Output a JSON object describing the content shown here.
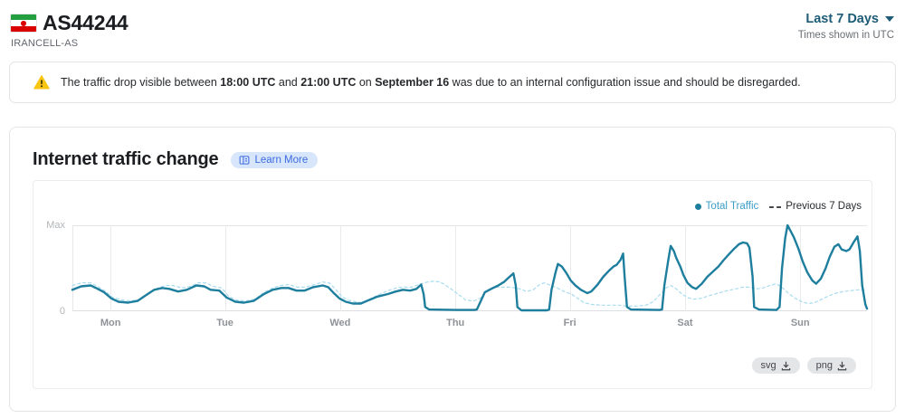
{
  "header": {
    "title": "AS44244",
    "subtitle": "IRANCELL-AS",
    "date_range": "Last 7 Days",
    "timezone_note": "Times shown in UTC",
    "flag": "iran-flag"
  },
  "banner": {
    "segments": [
      {
        "text": "The traffic drop visible between ",
        "bold": false
      },
      {
        "text": "18:00 UTC",
        "bold": true
      },
      {
        "text": " and ",
        "bold": false
      },
      {
        "text": "21:00 UTC",
        "bold": true
      },
      {
        "text": " on ",
        "bold": false
      },
      {
        "text": "September 16",
        "bold": true
      },
      {
        "text": " was due to an internal configuration issue and should be disregarded.",
        "bold": false
      }
    ]
  },
  "card": {
    "title": "Internet traffic change",
    "learn_more_label": "Learn More",
    "downloads": {
      "svg": "svg",
      "png": "png"
    }
  },
  "chart_data": {
    "type": "line",
    "title": "Internet traffic change",
    "legend_position": "top-right",
    "grid": "vertical-day-lines",
    "y_axis": {
      "labels": [
        "Max",
        "0"
      ],
      "range": [
        0,
        1
      ]
    },
    "x_ticks": [
      {
        "label": "Mon",
        "pos": 0.048
      },
      {
        "label": "Tue",
        "pos": 0.192
      },
      {
        "label": "Wed",
        "pos": 0.337
      },
      {
        "label": "Thu",
        "pos": 0.482
      },
      {
        "label": "Fri",
        "pos": 0.626
      },
      {
        "label": "Sat",
        "pos": 0.771
      },
      {
        "label": "Sun",
        "pos": 0.916
      }
    ],
    "series": [
      {
        "name": "Total Traffic",
        "color": "#1E7E9E",
        "dashed": false,
        "width": 2.4,
        "points": [
          [
            0.0,
            0.25
          ],
          [
            0.011,
            0.29
          ],
          [
            0.023,
            0.3
          ],
          [
            0.032,
            0.26
          ],
          [
            0.04,
            0.22
          ],
          [
            0.049,
            0.15
          ],
          [
            0.058,
            0.11
          ],
          [
            0.07,
            0.1
          ],
          [
            0.082,
            0.12
          ],
          [
            0.093,
            0.19
          ],
          [
            0.103,
            0.25
          ],
          [
            0.113,
            0.27
          ],
          [
            0.122,
            0.26
          ],
          [
            0.133,
            0.23
          ],
          [
            0.144,
            0.25
          ],
          [
            0.156,
            0.3
          ],
          [
            0.166,
            0.29
          ],
          [
            0.174,
            0.25
          ],
          [
            0.185,
            0.24
          ],
          [
            0.194,
            0.16
          ],
          [
            0.205,
            0.11
          ],
          [
            0.216,
            0.1
          ],
          [
            0.228,
            0.12
          ],
          [
            0.241,
            0.2
          ],
          [
            0.252,
            0.25
          ],
          [
            0.263,
            0.27
          ],
          [
            0.272,
            0.27
          ],
          [
            0.282,
            0.24
          ],
          [
            0.292,
            0.24
          ],
          [
            0.303,
            0.28
          ],
          [
            0.315,
            0.3
          ],
          [
            0.322,
            0.28
          ],
          [
            0.328,
            0.22
          ],
          [
            0.336,
            0.15
          ],
          [
            0.344,
            0.11
          ],
          [
            0.353,
            0.09
          ],
          [
            0.363,
            0.09
          ],
          [
            0.373,
            0.13
          ],
          [
            0.384,
            0.17
          ],
          [
            0.397,
            0.2
          ],
          [
            0.407,
            0.23
          ],
          [
            0.416,
            0.25
          ],
          [
            0.425,
            0.24
          ],
          [
            0.433,
            0.26
          ],
          [
            0.439,
            0.31
          ],
          [
            0.442,
            0.2
          ],
          [
            0.444,
            0.05
          ],
          [
            0.449,
            0.02
          ],
          [
            0.483,
            0.015
          ],
          [
            0.506,
            0.015
          ],
          [
            0.509,
            0.02
          ],
          [
            0.514,
            0.12
          ],
          [
            0.519,
            0.22
          ],
          [
            0.527,
            0.26
          ],
          [
            0.536,
            0.3
          ],
          [
            0.543,
            0.34
          ],
          [
            0.549,
            0.39
          ],
          [
            0.555,
            0.44
          ],
          [
            0.558,
            0.3
          ],
          [
            0.56,
            0.05
          ],
          [
            0.565,
            0.01
          ],
          [
            0.597,
            0.01
          ],
          [
            0.6,
            0.02
          ],
          [
            0.603,
            0.25
          ],
          [
            0.608,
            0.45
          ],
          [
            0.611,
            0.55
          ],
          [
            0.616,
            0.52
          ],
          [
            0.622,
            0.44
          ],
          [
            0.627,
            0.36
          ],
          [
            0.633,
            0.3
          ],
          [
            0.64,
            0.25
          ],
          [
            0.648,
            0.21
          ],
          [
            0.653,
            0.23
          ],
          [
            0.661,
            0.31
          ],
          [
            0.668,
            0.4
          ],
          [
            0.675,
            0.47
          ],
          [
            0.681,
            0.52
          ],
          [
            0.685,
            0.54
          ],
          [
            0.69,
            0.6
          ],
          [
            0.693,
            0.67
          ],
          [
            0.695,
            0.4
          ],
          [
            0.698,
            0.05
          ],
          [
            0.703,
            0.02
          ],
          [
            0.739,
            0.015
          ],
          [
            0.742,
            0.02
          ],
          [
            0.745,
            0.3
          ],
          [
            0.75,
            0.6
          ],
          [
            0.753,
            0.76
          ],
          [
            0.757,
            0.7
          ],
          [
            0.76,
            0.62
          ],
          [
            0.765,
            0.52
          ],
          [
            0.769,
            0.42
          ],
          [
            0.774,
            0.33
          ],
          [
            0.78,
            0.28
          ],
          [
            0.785,
            0.26
          ],
          [
            0.792,
            0.32
          ],
          [
            0.799,
            0.4
          ],
          [
            0.806,
            0.46
          ],
          [
            0.813,
            0.52
          ],
          [
            0.82,
            0.6
          ],
          [
            0.827,
            0.67
          ],
          [
            0.833,
            0.73
          ],
          [
            0.839,
            0.78
          ],
          [
            0.844,
            0.8
          ],
          [
            0.849,
            0.79
          ],
          [
            0.852,
            0.74
          ],
          [
            0.856,
            0.4
          ],
          [
            0.858,
            0.05
          ],
          [
            0.864,
            0.02
          ],
          [
            0.886,
            0.015
          ],
          [
            0.89,
            0.05
          ],
          [
            0.893,
            0.5
          ],
          [
            0.897,
            0.85
          ],
          [
            0.9,
            1.0
          ],
          [
            0.903,
            0.95
          ],
          [
            0.908,
            0.86
          ],
          [
            0.914,
            0.72
          ],
          [
            0.919,
            0.58
          ],
          [
            0.925,
            0.45
          ],
          [
            0.931,
            0.36
          ],
          [
            0.936,
            0.32
          ],
          [
            0.942,
            0.38
          ],
          [
            0.948,
            0.5
          ],
          [
            0.953,
            0.63
          ],
          [
            0.959,
            0.75
          ],
          [
            0.964,
            0.78
          ],
          [
            0.968,
            0.72
          ],
          [
            0.974,
            0.7
          ],
          [
            0.978,
            0.72
          ],
          [
            0.983,
            0.8
          ],
          [
            0.988,
            0.87
          ],
          [
            0.991,
            0.7
          ],
          [
            0.994,
            0.3
          ],
          [
            0.998,
            0.08
          ],
          [
            1.0,
            0.03
          ]
        ]
      },
      {
        "name": "Previous 7 Days",
        "color": "#A9DCEF",
        "dashed": true,
        "width": 1.2,
        "points": [
          [
            0.0,
            0.3
          ],
          [
            0.011,
            0.33
          ],
          [
            0.023,
            0.33
          ],
          [
            0.033,
            0.28
          ],
          [
            0.042,
            0.23
          ],
          [
            0.051,
            0.16
          ],
          [
            0.063,
            0.13
          ],
          [
            0.074,
            0.12
          ],
          [
            0.085,
            0.14
          ],
          [
            0.097,
            0.21
          ],
          [
            0.108,
            0.27
          ],
          [
            0.117,
            0.3
          ],
          [
            0.126,
            0.3
          ],
          [
            0.138,
            0.27
          ],
          [
            0.149,
            0.29
          ],
          [
            0.158,
            0.33
          ],
          [
            0.168,
            0.33
          ],
          [
            0.177,
            0.29
          ],
          [
            0.188,
            0.27
          ],
          [
            0.197,
            0.17
          ],
          [
            0.207,
            0.13
          ],
          [
            0.218,
            0.12
          ],
          [
            0.23,
            0.14
          ],
          [
            0.241,
            0.22
          ],
          [
            0.252,
            0.27
          ],
          [
            0.263,
            0.3
          ],
          [
            0.273,
            0.31
          ],
          [
            0.283,
            0.28
          ],
          [
            0.293,
            0.28
          ],
          [
            0.305,
            0.31
          ],
          [
            0.315,
            0.34
          ],
          [
            0.323,
            0.33
          ],
          [
            0.331,
            0.26
          ],
          [
            0.339,
            0.17
          ],
          [
            0.347,
            0.13
          ],
          [
            0.356,
            0.11
          ],
          [
            0.365,
            0.1
          ],
          [
            0.374,
            0.14
          ],
          [
            0.385,
            0.19
          ],
          [
            0.397,
            0.24
          ],
          [
            0.408,
            0.27
          ],
          [
            0.418,
            0.28
          ],
          [
            0.427,
            0.28
          ],
          [
            0.436,
            0.31
          ],
          [
            0.447,
            0.34
          ],
          [
            0.455,
            0.35
          ],
          [
            0.463,
            0.34
          ],
          [
            0.47,
            0.3
          ],
          [
            0.478,
            0.25
          ],
          [
            0.488,
            0.18
          ],
          [
            0.495,
            0.13
          ],
          [
            0.505,
            0.12
          ],
          [
            0.513,
            0.15
          ],
          [
            0.522,
            0.24
          ],
          [
            0.53,
            0.28
          ],
          [
            0.54,
            0.28
          ],
          [
            0.551,
            0.28
          ],
          [
            0.563,
            0.26
          ],
          [
            0.572,
            0.23
          ],
          [
            0.58,
            0.25
          ],
          [
            0.588,
            0.31
          ],
          [
            0.594,
            0.33
          ],
          [
            0.602,
            0.3
          ],
          [
            0.61,
            0.27
          ],
          [
            0.619,
            0.23
          ],
          [
            0.628,
            0.2
          ],
          [
            0.636,
            0.15
          ],
          [
            0.644,
            0.1
          ],
          [
            0.653,
            0.08
          ],
          [
            0.665,
            0.07
          ],
          [
            0.688,
            0.07
          ],
          [
            0.699,
            0.06
          ],
          [
            0.71,
            0.06
          ],
          [
            0.722,
            0.07
          ],
          [
            0.731,
            0.11
          ],
          [
            0.739,
            0.19
          ],
          [
            0.747,
            0.27
          ],
          [
            0.753,
            0.3
          ],
          [
            0.76,
            0.26
          ],
          [
            0.767,
            0.2
          ],
          [
            0.774,
            0.16
          ],
          [
            0.782,
            0.14
          ],
          [
            0.791,
            0.15
          ],
          [
            0.801,
            0.18
          ],
          [
            0.813,
            0.21
          ],
          [
            0.824,
            0.24
          ],
          [
            0.835,
            0.26
          ],
          [
            0.844,
            0.28
          ],
          [
            0.853,
            0.28
          ],
          [
            0.861,
            0.26
          ],
          [
            0.869,
            0.27
          ],
          [
            0.878,
            0.3
          ],
          [
            0.886,
            0.32
          ],
          [
            0.894,
            0.27
          ],
          [
            0.902,
            0.2
          ],
          [
            0.91,
            0.15
          ],
          [
            0.918,
            0.11
          ],
          [
            0.926,
            0.09
          ],
          [
            0.934,
            0.1
          ],
          [
            0.943,
            0.14
          ],
          [
            0.952,
            0.18
          ],
          [
            0.961,
            0.21
          ],
          [
            0.97,
            0.23
          ],
          [
            0.98,
            0.24
          ],
          [
            0.989,
            0.25
          ],
          [
            1.0,
            0.25
          ]
        ]
      }
    ]
  }
}
